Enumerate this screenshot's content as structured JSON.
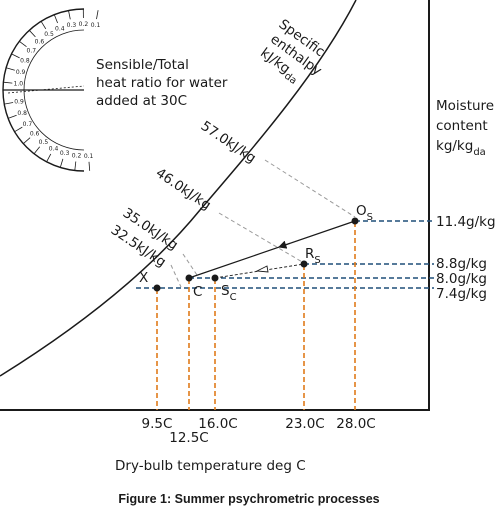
{
  "title": "Figure 1: Summer psychrometric processes",
  "xlabel": "Dry-bulb temperature deg C",
  "ylabel": {
    "line1": "Moisture",
    "line2": "content",
    "line3": "kg/kg",
    "line3_sub": "da"
  },
  "enthalpy_axis": {
    "line1": "Specific",
    "line2": "enthalpy",
    "line3": "kJ/kg",
    "line3_sub": "da"
  },
  "protractor": {
    "label_line1": "Sensible/Total",
    "label_line2": "heat ratio for water",
    "label_line3": "added at 30C",
    "ticks_upper": [
      "0.1",
      "0.2",
      "0.3",
      "0.4",
      "0.5",
      "0.6",
      "0.7",
      "0.8",
      "0.9",
      "1.0"
    ],
    "ticks_lower": [
      "0.9",
      "0.8",
      "0.7",
      "0.6",
      "0.5",
      "0.4",
      "0.3",
      "0.2",
      "0.1"
    ]
  },
  "temperatures": [
    {
      "label": "9.5C",
      "value": 9.5
    },
    {
      "label": "12.5C",
      "value": 12.5
    },
    {
      "label": "16.0C",
      "value": 16.0
    },
    {
      "label": "23.0C",
      "value": 23.0
    },
    {
      "label": "28.0C",
      "value": 28.0
    }
  ],
  "moisture": [
    {
      "label": "11.4g/kg",
      "value": 11.4
    },
    {
      "label": "8.8g/kg",
      "value": 8.8
    },
    {
      "label": "8.0g/kg",
      "value": 8.0
    },
    {
      "label": "7.4g/kg",
      "value": 7.4
    }
  ],
  "enthalpies": [
    {
      "label": "57.0kJ/kg",
      "value": 57.0
    },
    {
      "label": "46.0kJ/kg",
      "value": 46.0
    },
    {
      "label": "35.0kJ/kg",
      "value": 35.0
    },
    {
      "label": "32.5kJ/kg",
      "value": 32.5
    }
  ],
  "points": {
    "X": "X",
    "C": "C",
    "S": "S",
    "S_sub": "C",
    "R": "R",
    "R_sub": "S",
    "O": "O",
    "O_sub": "S"
  },
  "colors": {
    "axis": "#1a1a1a",
    "temperature_guides": "#e07b1a",
    "moisture_guides": "#1f4e79",
    "enthalpy_guides": "#9a9a9a"
  }
}
